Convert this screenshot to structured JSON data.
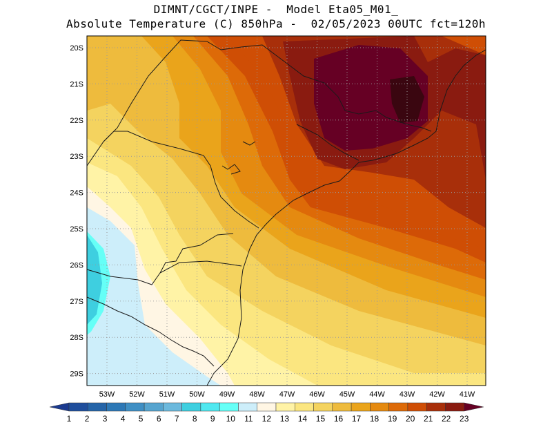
{
  "header": {
    "line1": "DIMNT/CGCT/INPE -  Model Eta05_M01_",
    "line2": "Absolute Temperature (C) 850hPa -  02/05/2023 00UTC fct=120h"
  },
  "map": {
    "lat_labels": [
      "20S",
      "21S",
      "22S",
      "23S",
      "24S",
      "25S",
      "26S",
      "27S",
      "28S",
      "29S"
    ],
    "lon_labels": [
      "53W",
      "52W",
      "51W",
      "50W",
      "49W",
      "48W",
      "47W",
      "46W",
      "45W",
      "44W",
      "43W",
      "42W",
      "41W"
    ]
  },
  "colorbar": {
    "labels": [
      "1",
      "2",
      "3",
      "4",
      "5",
      "6",
      "7",
      "8",
      "9",
      "10",
      "11",
      "12",
      "13",
      "14",
      "15",
      "16",
      "17",
      "18",
      "19",
      "20",
      "21",
      "22",
      "23"
    ],
    "colors": [
      "#1a3a8f",
      "#1f4e9c",
      "#2564a8",
      "#2d78b6",
      "#3f8fc4",
      "#56a4cf",
      "#6cb9dd",
      "#3ecfe0",
      "#4fe8f0",
      "#66fff7",
      "#cdeefa",
      "#fff6e4",
      "#fff3a6",
      "#fbe680",
      "#f4d35f",
      "#eebb3d",
      "#eaa41b",
      "#e58a10",
      "#dd6a08",
      "#cf4e05",
      "#a82f0a",
      "#8a1b10",
      "#660024"
    ]
  }
}
